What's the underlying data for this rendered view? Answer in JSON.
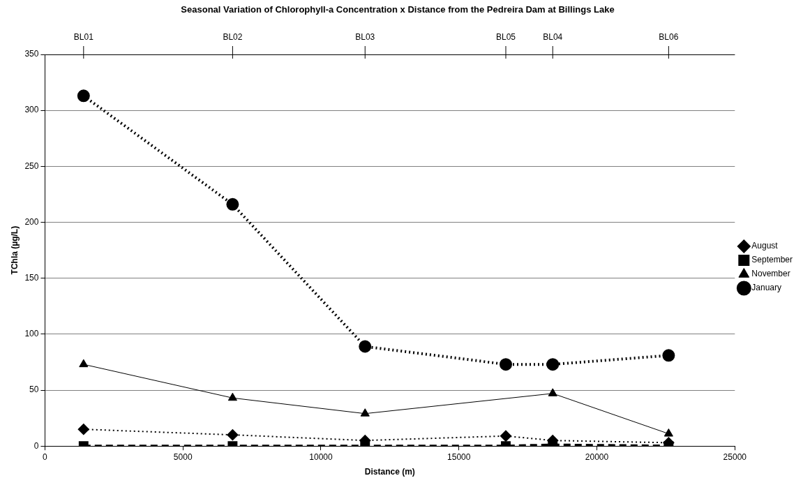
{
  "chart_data": {
    "type": "line",
    "title": "Seasonal Variation of Chlorophyll-a Concentration x Distance from the Pedreira Dam at Billings Lake",
    "xlabel": "Distance (m)",
    "ylabel": "TChla (µg/L)",
    "x": [
      1400,
      6800,
      11600,
      16700,
      18400,
      22600
    ],
    "series": [
      {
        "name": "August",
        "color": "#000000",
        "marker": "diamond",
        "line_style": "dotted",
        "values": [
          15,
          10,
          5,
          9,
          5,
          3
        ]
      },
      {
        "name": "September",
        "color": "#000000",
        "marker": "square",
        "line_style": "dashed",
        "values": [
          0,
          0,
          0,
          0,
          1,
          0
        ]
      },
      {
        "name": "November",
        "color": "#000000",
        "marker": "triangle",
        "line_style": "solid",
        "values": [
          73,
          43,
          29,
          null,
          47,
          11
        ]
      },
      {
        "name": "January",
        "color": "#000000",
        "marker": "circle",
        "line_style": "dotted",
        "values": [
          313,
          216,
          89,
          73,
          73,
          81
        ]
      }
    ],
    "xlim": [
      0,
      25000
    ],
    "xticks": [
      0,
      5000,
      10000,
      15000,
      20000,
      25000
    ],
    "ylim": [
      0,
      350
    ],
    "yticks": [
      0,
      50,
      100,
      150,
      200,
      250,
      300,
      350
    ],
    "annotations": [
      {
        "text": "BL01",
        "x": 1400
      },
      {
        "text": "BL02",
        "x": 6800
      },
      {
        "text": "BL03",
        "x": 11600
      },
      {
        "text": "BL05",
        "x": 16700
      },
      {
        "text": "BL04",
        "x": 18400
      },
      {
        "text": "BL06",
        "x": 22600
      }
    ],
    "grid": "y",
    "legend": "right"
  }
}
